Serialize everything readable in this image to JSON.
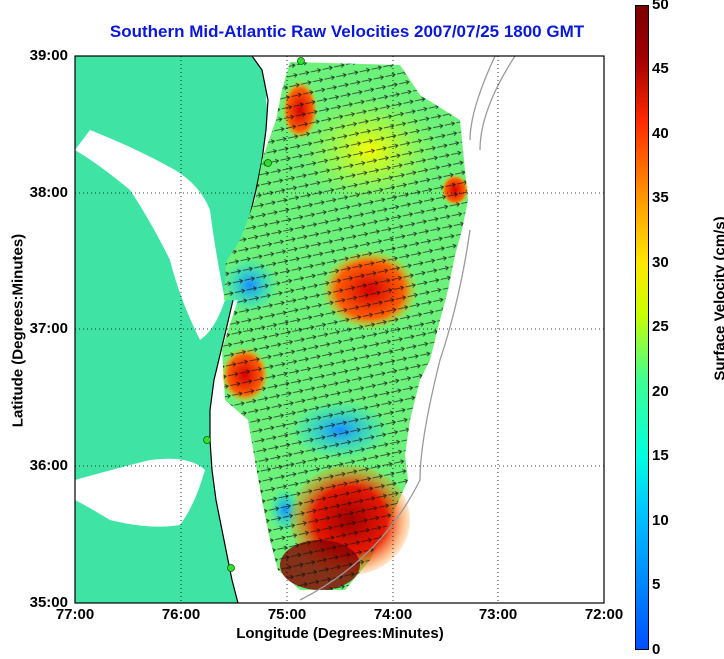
{
  "title": "Southern Mid-Atlantic Raw Velocities 2007/07/25 1800 GMT",
  "axes": {
    "xlabel": "Longitude (Degrees:Minutes)",
    "ylabel": "Latitude (Degrees:Minutes)",
    "x_ticks": [
      "77:00",
      "76:00",
      "75:00",
      "74:00",
      "73:00",
      "72:00"
    ],
    "y_ticks": [
      "39:00",
      "38:00",
      "37:00",
      "36:00",
      "35:00"
    ]
  },
  "colorbar": {
    "label": "Surface Velocity (cm/s)",
    "ticks": [
      "50",
      "45",
      "40",
      "35",
      "30",
      "25",
      "20",
      "15",
      "10",
      "5",
      "0"
    ],
    "range": [
      0,
      50
    ]
  },
  "map_extent": {
    "lon": [
      -77,
      -72
    ],
    "lat": [
      35,
      39
    ]
  },
  "colors": {
    "title": "#0a18d8",
    "land": "#3fe3a4",
    "grid": "#000000"
  }
}
